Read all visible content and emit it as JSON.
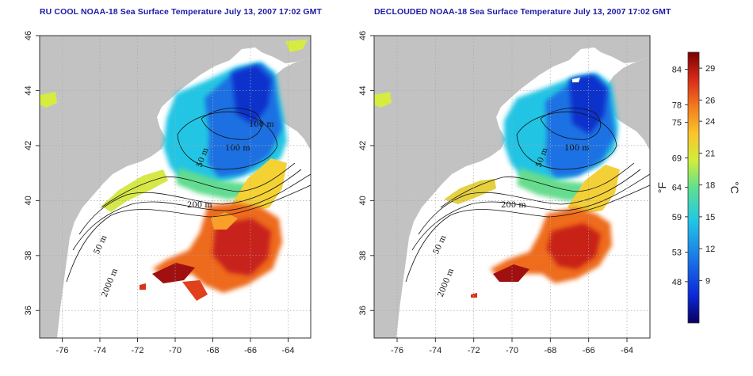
{
  "titles": {
    "left": "RU COOL NOAA-18 Sea Surface Temperature July 13, 2007 17:02 GMT",
    "right": "DECLOUDED NOAA-18 Sea Surface Temperature July 13, 2007 17:02 GMT"
  },
  "map": {
    "x_ticks": [
      "-76",
      "-74",
      "-72",
      "-70",
      "-68",
      "-66",
      "-64"
    ],
    "y_ticks": [
      "36",
      "38",
      "40",
      "42",
      "44",
      "46"
    ],
    "x_range": [
      -77.2,
      -62.8
    ],
    "y_range": [
      35,
      46
    ],
    "gridlines": true
  },
  "contours": {
    "left": [
      "100 m",
      "100 m",
      "50 m",
      "200 m",
      "50 m",
      "2000 m"
    ],
    "right": [
      "100 m",
      "50 m",
      "200 m",
      "50 m",
      "2000 m"
    ]
  },
  "colorbar": {
    "fahrenheit_label": "°F",
    "celsius_label": "°C",
    "fahrenheit_ticks": [
      "84",
      "78",
      "75",
      "69",
      "64",
      "59",
      "53",
      "48"
    ],
    "celsius_ticks": [
      "29",
      "26",
      "24",
      "21",
      "18",
      "15",
      "12",
      "9"
    ],
    "range_c": [
      5,
      30.5
    ],
    "colors": [
      "#08005e",
      "#0a28d8",
      "#1a78e8",
      "#20c8e6",
      "#5fe08e",
      "#d0ee3a",
      "#fbc42a",
      "#f47a1e",
      "#d82a18",
      "#7a0000"
    ]
  }
}
